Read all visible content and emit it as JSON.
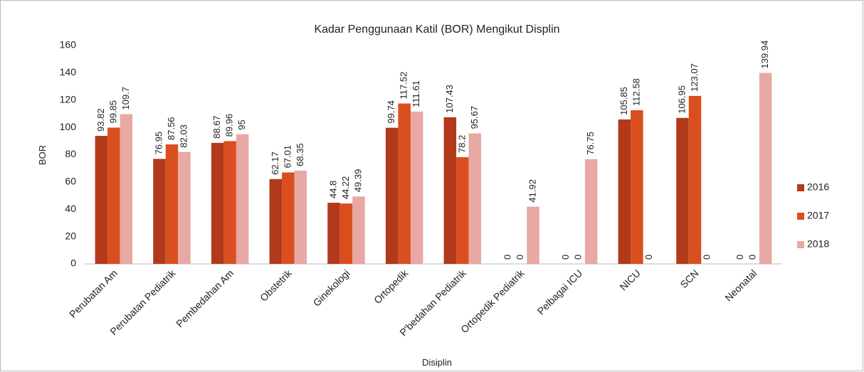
{
  "chart_data": {
    "type": "bar",
    "title": "Kadar Penggunaan Katil (BOR) Mengikut Displin",
    "x_label": "Disiplin",
    "y_label": "BOR",
    "categories": [
      "Perubatan Am",
      "Perubatan Pediatrik",
      "Pembedahan Am",
      "Obstetrik",
      "Ginekologi",
      "Ortopedik",
      "P'bedahan Pediatrik",
      "Ortopedik Pediatrik",
      "Pelbagai ICU",
      "NICU",
      "SCN",
      "Neonatal"
    ],
    "series": [
      {
        "name": "2016",
        "color": "#b23a1a",
        "values": [
          93.82,
          76.95,
          88.67,
          62.17,
          44.8,
          99.74,
          107.43,
          0,
          0,
          105.85,
          106.95,
          0
        ]
      },
      {
        "name": "2017",
        "color": "#d94f1f",
        "values": [
          99.85,
          87.56,
          89.96,
          67.01,
          44.22,
          117.52,
          78.2,
          0,
          0,
          112.58,
          123.07,
          0
        ]
      },
      {
        "name": "2018",
        "color": "#e8a8a3",
        "values": [
          109.7,
          82.03,
          95,
          68.35,
          49.39,
          111.61,
          95.67,
          41.92,
          76.75,
          0,
          0,
          139.94
        ]
      }
    ],
    "ylim": [
      0,
      160
    ],
    "yticks": [
      0,
      20,
      40,
      60,
      80,
      100,
      120,
      140,
      160
    ],
    "legend": "right",
    "grid": false
  }
}
